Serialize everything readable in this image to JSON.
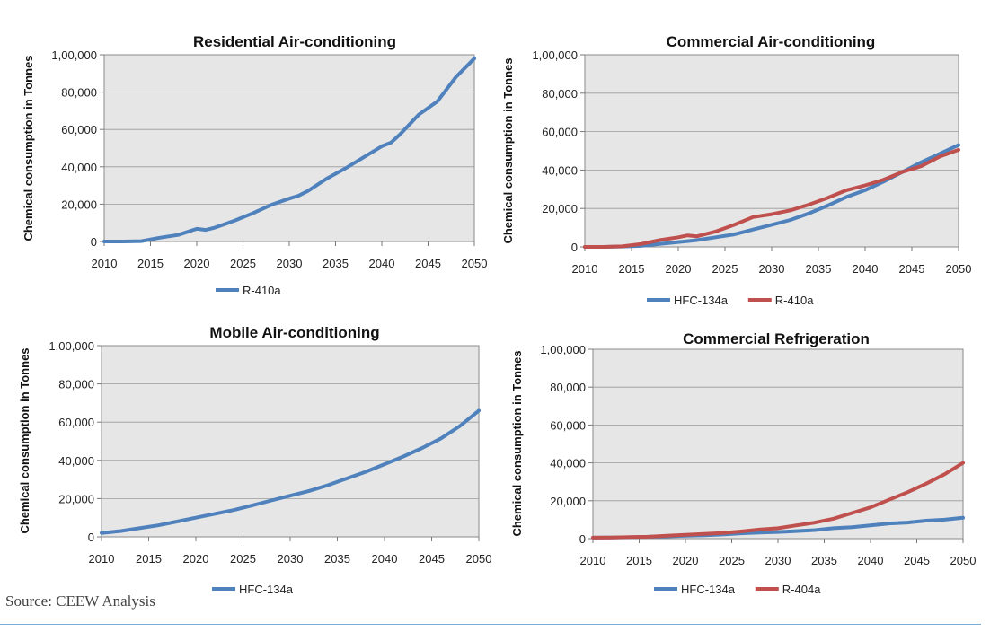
{
  "source_note": "Source: CEEW Analysis",
  "colors": {
    "HFC-134a": "#4f81bd",
    "R-410a": "#c0504d",
    "R-404a": "#c0504d",
    "R-410a-single": "#4f81bd",
    "plot_bg": "#e6e6e6"
  },
  "chart_data": [
    {
      "type": "line",
      "title": "Residential Air-conditioning",
      "ylabel": "Chemical consumption in Tonnes",
      "xlabel": "",
      "x": [
        2010,
        2012,
        2014,
        2016,
        2018,
        2020,
        2021,
        2022,
        2024,
        2026,
        2028,
        2030,
        2031,
        2032,
        2034,
        2036,
        2038,
        2040,
        2041,
        2042,
        2044,
        2046,
        2048,
        2050
      ],
      "xticks": [
        "2010",
        "2015",
        "2020",
        "2025",
        "2030",
        "2035",
        "2040",
        "2045",
        "2050"
      ],
      "yticks": [
        "0",
        "20,000",
        "40,000",
        "60,000",
        "80,000",
        "1,00,000"
      ],
      "ylim": [
        0,
        100000
      ],
      "xlim": [
        2010,
        2050
      ],
      "grid": true,
      "legend": "bottom",
      "series": [
        {
          "name": "R-410a",
          "color": "#4f81bd",
          "values": [
            0,
            0,
            200,
            2000,
            3500,
            6800,
            6200,
            7500,
            11000,
            15000,
            19500,
            23000,
            24500,
            27000,
            33500,
            39000,
            45000,
            51000,
            53000,
            57500,
            68000,
            75000,
            88000,
            98000
          ]
        }
      ]
    },
    {
      "type": "line",
      "title": "Commercial Air-conditioning",
      "ylabel": "Chemical consumption in Tonnes",
      "xlabel": "",
      "x": [
        2010,
        2012,
        2014,
        2016,
        2018,
        2020,
        2021,
        2022,
        2024,
        2026,
        2028,
        2030,
        2032,
        2034,
        2036,
        2038,
        2040,
        2042,
        2044,
        2046,
        2048,
        2050
      ],
      "xticks": [
        "2010",
        "2015",
        "2020",
        "2025",
        "2030",
        "2035",
        "2040",
        "2045",
        "2050"
      ],
      "yticks": [
        "0",
        "20,000",
        "40,000",
        "60,000",
        "80,000",
        "1,00,000"
      ],
      "ylim": [
        0,
        100000
      ],
      "xlim": [
        2010,
        2050
      ],
      "grid": true,
      "legend": "bottom",
      "series": [
        {
          "name": "HFC-134a",
          "color": "#4f81bd",
          "values": [
            0,
            0,
            200,
            500,
            1500,
            2500,
            3000,
            3500,
            5000,
            6500,
            9000,
            11500,
            14000,
            17500,
            21500,
            26000,
            29500,
            34000,
            39000,
            44000,
            48500,
            53000
          ]
        },
        {
          "name": "R-410a",
          "color": "#c0504d",
          "values": [
            0,
            0,
            300,
            1500,
            3500,
            5000,
            6000,
            5500,
            8000,
            11500,
            15500,
            17000,
            19000,
            22000,
            25500,
            29500,
            32000,
            35000,
            39000,
            42000,
            47000,
            50500
          ]
        }
      ]
    },
    {
      "type": "line",
      "title": "Mobile Air-conditioning",
      "ylabel": "Chemical consumption in Tonnes",
      "xlabel": "",
      "x": [
        2010,
        2012,
        2014,
        2016,
        2018,
        2020,
        2022,
        2024,
        2026,
        2028,
        2030,
        2032,
        2034,
        2036,
        2038,
        2040,
        2042,
        2044,
        2046,
        2048,
        2050
      ],
      "xticks": [
        "2010",
        "2015",
        "2020",
        "2025",
        "2030",
        "2035",
        "2040",
        "2045",
        "2050"
      ],
      "yticks": [
        "0",
        "20,000",
        "40,000",
        "60,000",
        "80,000",
        "1,00,000"
      ],
      "ylim": [
        0,
        100000
      ],
      "xlim": [
        2010,
        2050
      ],
      "grid": true,
      "legend": "bottom",
      "series": [
        {
          "name": "HFC-134a",
          "color": "#4f81bd",
          "values": [
            2000,
            3000,
            4500,
            6000,
            8000,
            10000,
            12000,
            14000,
            16500,
            19000,
            21500,
            24000,
            27000,
            30500,
            34000,
            38000,
            42000,
            46500,
            51500,
            58000,
            66000
          ]
        }
      ]
    },
    {
      "type": "line",
      "title": "Commercial Refrigeration",
      "ylabel": "Chemical consumption in Tonnes",
      "xlabel": "",
      "x": [
        2010,
        2012,
        2014,
        2016,
        2018,
        2020,
        2022,
        2024,
        2026,
        2028,
        2030,
        2032,
        2034,
        2036,
        2038,
        2040,
        2042,
        2044,
        2046,
        2048,
        2050
      ],
      "xticks": [
        "2010",
        "2015",
        "2020",
        "2025",
        "2030",
        "2035",
        "2040",
        "2045",
        "2050"
      ],
      "yticks": [
        "0",
        "20,000",
        "40,000",
        "60,000",
        "80,000",
        "1,00,000"
      ],
      "ylim": [
        0,
        100000
      ],
      "xlim": [
        2010,
        2050
      ],
      "grid": true,
      "legend": "bottom",
      "series": [
        {
          "name": "HFC-134a",
          "color": "#4f81bd",
          "values": [
            500,
            600,
            700,
            1000,
            1200,
            1500,
            1800,
            2200,
            2800,
            3200,
            3500,
            4000,
            4500,
            5500,
            6000,
            7000,
            8000,
            8500,
            9500,
            10000,
            11000
          ]
        },
        {
          "name": "R-404a",
          "color": "#c0504d",
          "values": [
            500,
            600,
            800,
            1000,
            1500,
            2000,
            2500,
            3000,
            3800,
            4800,
            5500,
            7000,
            8500,
            10500,
            13500,
            16500,
            20500,
            24500,
            29000,
            34000,
            40000
          ]
        }
      ]
    }
  ]
}
